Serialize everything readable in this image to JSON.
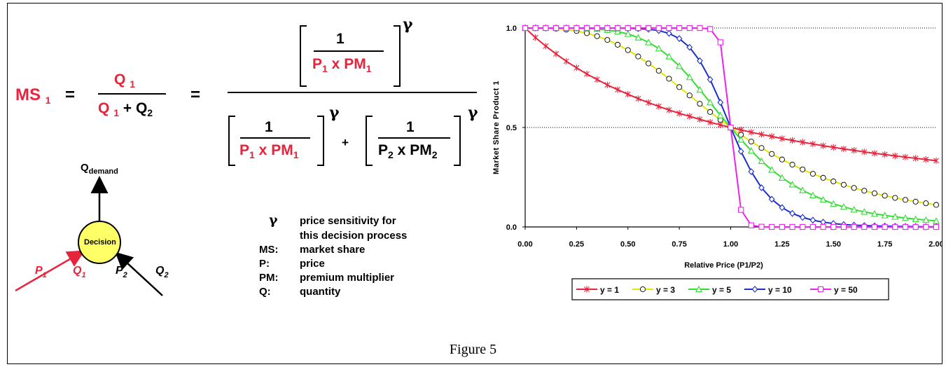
{
  "equation": {
    "ms": "MS",
    "ms_sub": "1",
    "eq": "=",
    "q": "Q",
    "q1_sub": "1",
    "plus": "+",
    "q2": "Q",
    "q2_sub": "2",
    "one": "1",
    "p": "P",
    "p1_sub": "1",
    "p2_sub": "2",
    "x": "x",
    "pm": "PM",
    "pm1_sub": "1",
    "pm2_sub": "2",
    "gamma": "γ"
  },
  "decision_diagram": {
    "node_label": "Decision",
    "q_demand": "Q",
    "q_demand_sub": "demand",
    "p1": "P",
    "p1_sub": "1",
    "q1": "Q",
    "q1_sub": "1",
    "p2": "P",
    "p2_sub": "2",
    "q2": "Q",
    "q2_sub": "2"
  },
  "legend": [
    {
      "term": "γ",
      "definition": "price sensitivity for"
    },
    {
      "term": "",
      "definition": "this decision process"
    },
    {
      "term": "MS:",
      "definition": "market share"
    },
    {
      "term": "P:",
      "definition": "price"
    },
    {
      "term": "PM:",
      "definition": "premium multiplier"
    },
    {
      "term": "Q:",
      "definition": "quantity"
    }
  ],
  "caption": "Figure 5",
  "colors": {
    "red": "#e8233c",
    "yellow": "#e6e600",
    "green": "#33dd33",
    "blue": "#1a2ecc",
    "magenta": "#ee22ee"
  },
  "chart_data": {
    "type": "line",
    "xlabel": "Relative Price (P1/P2)",
    "ylabel": "Market Share Product 1",
    "xlim": [
      0,
      2
    ],
    "ylim": [
      0,
      1
    ],
    "x_ticks": [
      "0.00",
      "0.25",
      "0.50",
      "0.75",
      "1.00",
      "1.25",
      "1.50",
      "1.75",
      "2.00"
    ],
    "y_ticks": [
      "0.0",
      "0.5",
      "1.0"
    ],
    "grid": "horizontal dotted at 0.5 and 1.0",
    "x": [
      0,
      0.05,
      0.1,
      0.15,
      0.2,
      0.25,
      0.3,
      0.35,
      0.4,
      0.45,
      0.5,
      0.55,
      0.6,
      0.65,
      0.7,
      0.75,
      0.8,
      0.85,
      0.9,
      0.95,
      1.0,
      1.05,
      1.1,
      1.15,
      1.2,
      1.25,
      1.3,
      1.35,
      1.4,
      1.45,
      1.5,
      1.55,
      1.6,
      1.65,
      1.7,
      1.75,
      1.8,
      1.85,
      1.9,
      1.95,
      2.0
    ],
    "series": [
      {
        "name": "y = 1",
        "marker": "asterisk",
        "color": "#e8233c",
        "values": [
          1.0,
          0.952,
          0.909,
          0.87,
          0.833,
          0.8,
          0.769,
          0.741,
          0.714,
          0.69,
          0.667,
          0.645,
          0.625,
          0.606,
          0.588,
          0.571,
          0.556,
          0.541,
          0.526,
          0.513,
          0.5,
          0.488,
          0.476,
          0.465,
          0.455,
          0.444,
          0.435,
          0.426,
          0.417,
          0.408,
          0.4,
          0.392,
          0.385,
          0.377,
          0.37,
          0.364,
          0.357,
          0.351,
          0.345,
          0.339,
          0.333
        ]
      },
      {
        "name": "y = 3",
        "marker": "circle",
        "color": "#e6e600",
        "values": [
          1.0,
          1.0,
          0.999,
          0.997,
          0.992,
          0.985,
          0.974,
          0.959,
          0.94,
          0.916,
          0.889,
          0.857,
          0.822,
          0.785,
          0.745,
          0.703,
          0.661,
          0.619,
          0.578,
          0.538,
          0.5,
          0.463,
          0.429,
          0.397,
          0.367,
          0.339,
          0.313,
          0.289,
          0.267,
          0.247,
          0.229,
          0.212,
          0.196,
          0.182,
          0.169,
          0.157,
          0.146,
          0.136,
          0.127,
          0.119,
          0.111
        ]
      },
      {
        "name": "y = 5",
        "marker": "triangle",
        "color": "#33dd33",
        "values": [
          1.0,
          1.0,
          1.0,
          1.0,
          1.0,
          0.999,
          0.998,
          0.995,
          0.99,
          0.982,
          0.97,
          0.952,
          0.928,
          0.897,
          0.857,
          0.809,
          0.753,
          0.69,
          0.626,
          0.561,
          0.5,
          0.439,
          0.383,
          0.331,
          0.287,
          0.247,
          0.213,
          0.184,
          0.159,
          0.137,
          0.116,
          0.101,
          0.087,
          0.076,
          0.066,
          0.058,
          0.051,
          0.045,
          0.039,
          0.035,
          0.03
        ]
      },
      {
        "name": "y = 10",
        "marker": "diamond",
        "color": "#1a2ecc",
        "values": [
          1.0,
          1.0,
          1.0,
          1.0,
          1.0,
          1.0,
          1.0,
          1.0,
          1.0,
          1.0,
          0.999,
          0.997,
          0.994,
          0.987,
          0.973,
          0.947,
          0.903,
          0.835,
          0.741,
          0.626,
          0.5,
          0.38,
          0.278,
          0.197,
          0.139,
          0.097,
          0.068,
          0.048,
          0.034,
          0.024,
          0.017,
          0.012,
          0.009,
          0.007,
          0.005,
          0.004,
          0.003,
          0.002,
          0.002,
          0.001,
          0.001
        ]
      },
      {
        "name": "y = 50",
        "marker": "square",
        "color": "#ee22ee",
        "values": [
          1.0,
          1.0,
          1.0,
          1.0,
          1.0,
          1.0,
          1.0,
          1.0,
          1.0,
          1.0,
          1.0,
          1.0,
          1.0,
          1.0,
          1.0,
          1.0,
          1.0,
          1.0,
          0.995,
          0.928,
          0.5,
          0.086,
          0.008,
          0.001,
          0.0,
          0.0,
          0.0,
          0.0,
          0.0,
          0.0,
          0.0,
          0.0,
          0.0,
          0.0,
          0.0,
          0.0,
          0.0,
          0.0,
          0.0,
          0.0,
          0.0
        ]
      }
    ]
  }
}
